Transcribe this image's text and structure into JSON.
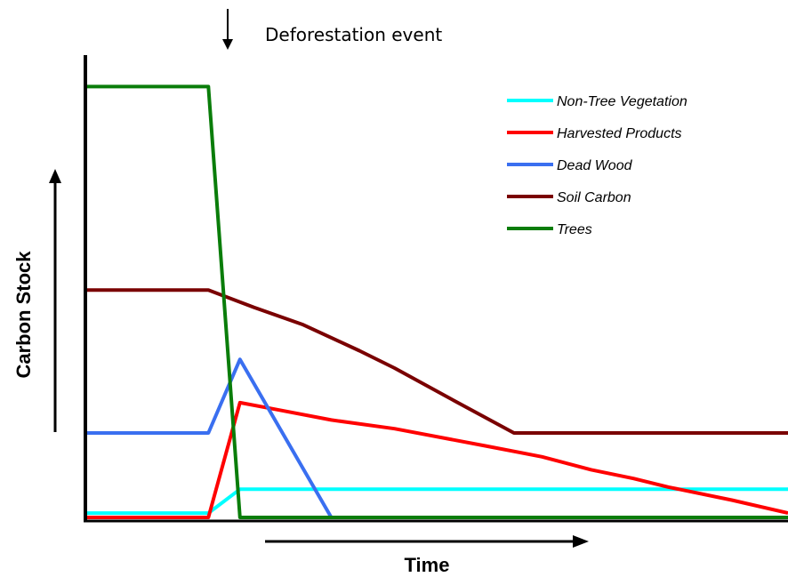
{
  "chart_data": {
    "type": "line",
    "title": "",
    "xlabel": "Time",
    "ylabel": "Carbon Stock",
    "annotation": "Deforestation event",
    "xlim": [
      0,
      100
    ],
    "ylim": [
      0,
      100
    ],
    "ticks": "none",
    "legend_position": "top-right",
    "series": [
      {
        "name": "Non-Tree Vegetation",
        "color": "#00ffff",
        "x": [
          0,
          17.5,
          22,
          100
        ],
        "y": [
          1,
          1,
          6.5,
          6.5
        ]
      },
      {
        "name": "Harvested Products",
        "color": "#ff0000",
        "x": [
          0,
          17.5,
          22,
          27,
          35,
          44,
          57,
          65,
          72,
          78,
          83,
          92,
          100
        ],
        "y": [
          0,
          0,
          26.5,
          25,
          22.5,
          20.5,
          16.5,
          14,
          11,
          9,
          7,
          4,
          1
        ]
      },
      {
        "name": "Dead Wood",
        "color": "#3a6ff0",
        "x": [
          0,
          17.5,
          22,
          35
        ],
        "y": [
          19.5,
          19.5,
          36.5,
          0
        ]
      },
      {
        "name": "Soil Carbon",
        "color": "#7a0000",
        "x": [
          0,
          17.5,
          24,
          31,
          39,
          44,
          53,
          61,
          100
        ],
        "y": [
          52.5,
          52.5,
          48.5,
          44.5,
          38.5,
          34.5,
          26.5,
          19.5,
          19.5
        ]
      },
      {
        "name": "Trees",
        "color": "#0a7d0a",
        "x": [
          0,
          17.5,
          22,
          100
        ],
        "y": [
          99.5,
          99.5,
          0,
          0
        ]
      }
    ]
  }
}
